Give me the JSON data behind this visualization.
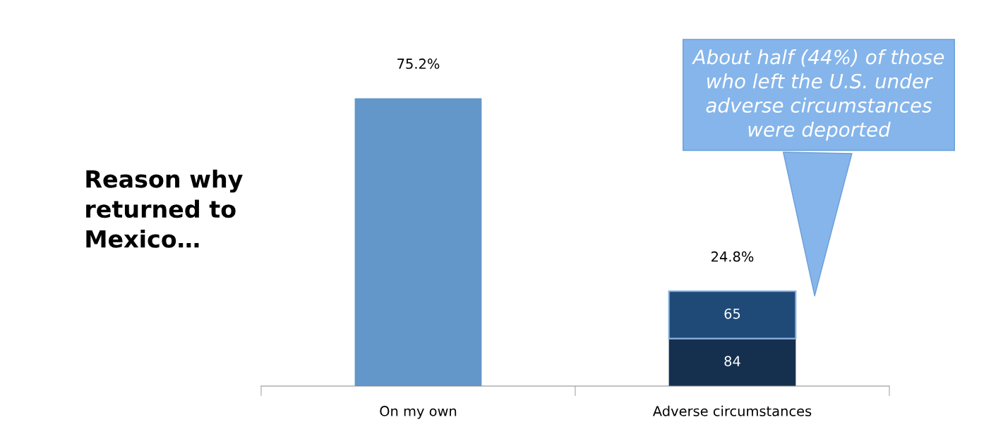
{
  "chart_data": {
    "type": "bar",
    "stacked": true,
    "ylabel": "Reason why\nreturned to\nMexico…",
    "categories": [
      "On my own",
      "Adverse circumstances"
    ],
    "series": [
      {
        "colors": [
          "#6397c9",
          "#15304f"
        ],
        "values": [
          75.2,
          12.4
        ],
        "value_labels": [
          "75.2%",
          null
        ]
      },
      {
        "color": "#1f4a77",
        "values": [
          null,
          12.4
        ]
      }
    ],
    "totals": [
      null,
      "24.8%"
    ],
    "annotations": [
      "84",
      "65",
      "About half (44%) of those\nwho left the U.S. under\nadverse circumstances\nwere deported"
    ],
    "grid": false,
    "legend": false
  }
}
